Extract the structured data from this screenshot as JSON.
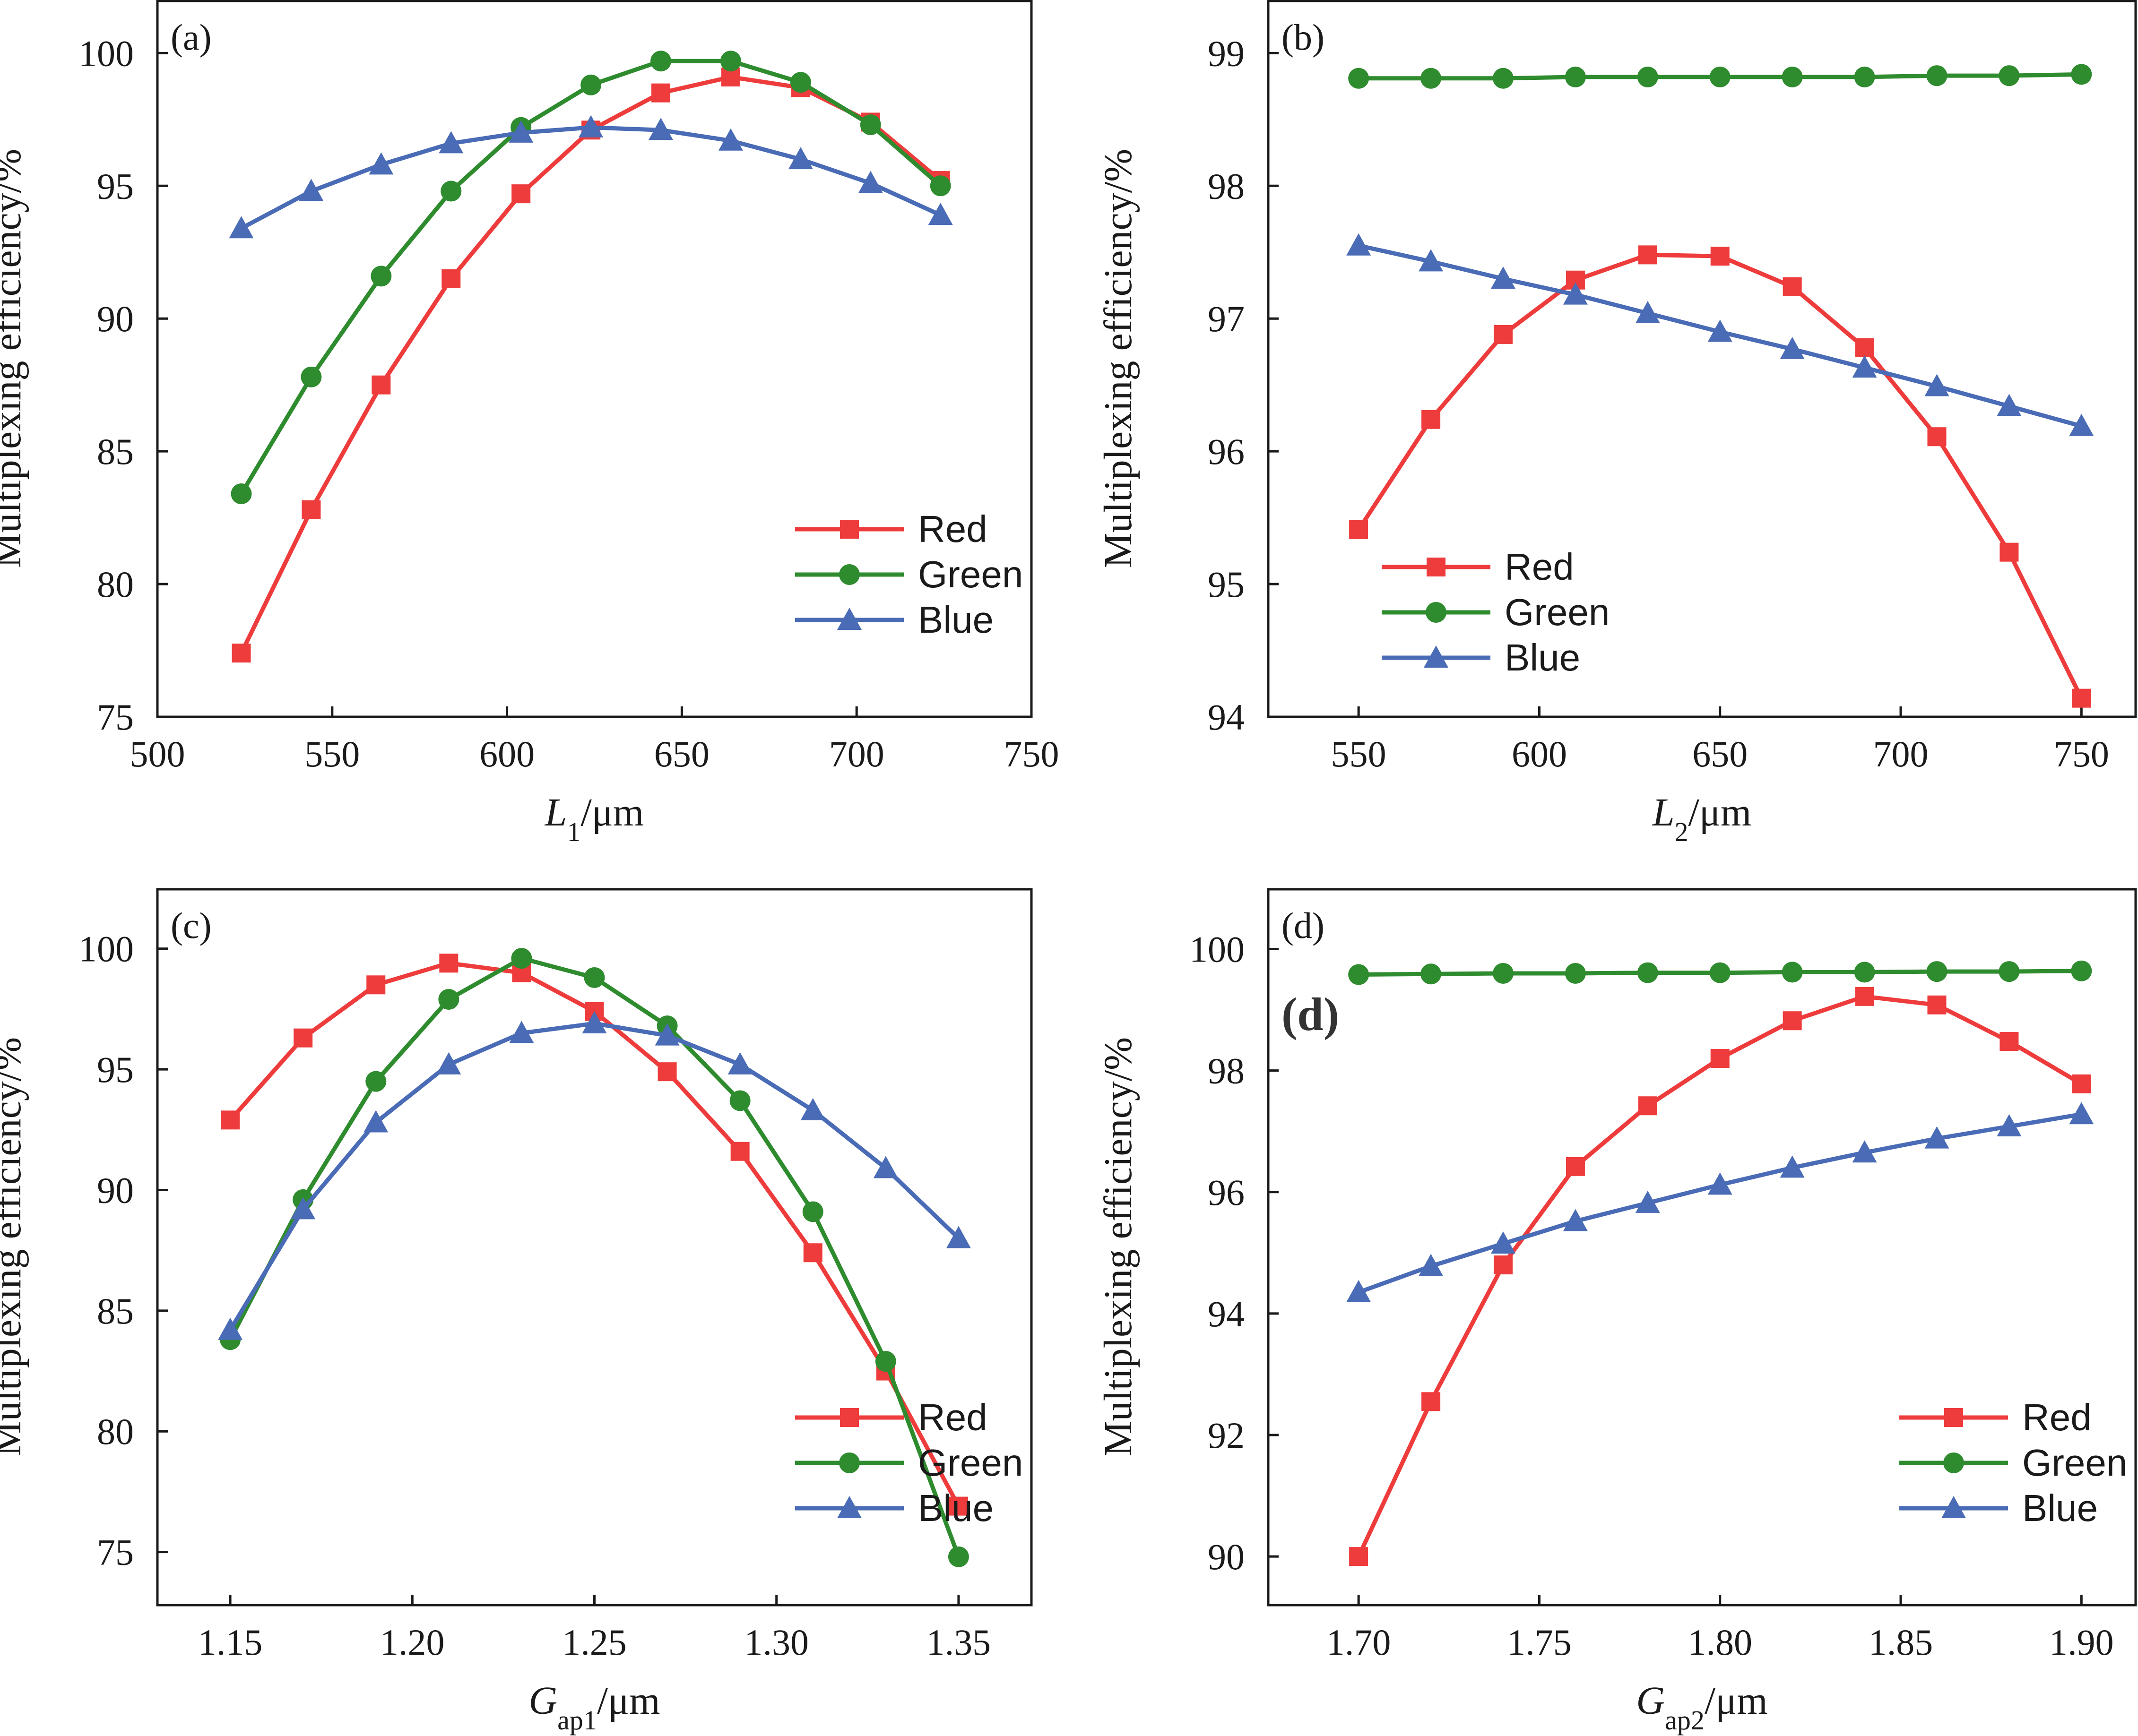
{
  "chart_data": [
    {
      "type": "line",
      "panel_label": "(a)",
      "xlabel": {
        "var": "L",
        "sub": "1",
        "unit": "/μm"
      },
      "ylabel": "Multiplexing efficiency/%",
      "xlim": [
        500,
        750
      ],
      "ylim": [
        75,
        102
      ],
      "xticks": [
        500,
        550,
        600,
        650,
        700,
        750
      ],
      "xtick_labels": [
        "500",
        "550",
        "600",
        "650",
        "700",
        "750"
      ],
      "yticks": [
        75,
        80,
        85,
        90,
        95,
        100
      ],
      "ytick_labels": [
        "75",
        "80",
        "85",
        "90",
        "95",
        "100"
      ],
      "legend_position": "bottom-right",
      "series": [
        {
          "name": "Red",
          "color": "#ee3b3b",
          "marker": "square",
          "x": [
            524,
            544,
            564,
            584,
            604,
            624,
            644,
            664,
            684,
            704,
            724
          ],
          "y": [
            77.4,
            82.8,
            87.5,
            91.5,
            94.7,
            97.1,
            98.5,
            99.1,
            98.7,
            97.4,
            95.2
          ]
        },
        {
          "name": "Green",
          "color": "#2e8b2e",
          "marker": "circle",
          "x": [
            524,
            544,
            564,
            584,
            604,
            624,
            644,
            664,
            684,
            704,
            724
          ],
          "y": [
            83.4,
            87.8,
            91.6,
            94.8,
            97.2,
            98.8,
            99.7,
            99.7,
            98.9,
            97.3,
            95.0
          ]
        },
        {
          "name": "Blue",
          "color": "#4a6bb5",
          "marker": "triangle",
          "x": [
            524,
            544,
            564,
            584,
            604,
            624,
            644,
            664,
            684,
            704,
            724
          ],
          "y": [
            93.4,
            94.8,
            95.8,
            96.6,
            97.0,
            97.2,
            97.1,
            96.7,
            96.0,
            95.1,
            93.9
          ]
        }
      ]
    },
    {
      "type": "line",
      "panel_label": "(b)",
      "xlabel": {
        "var": "L",
        "sub": "2",
        "unit": "/μm"
      },
      "ylabel": "Multiplexing efficiency/%",
      "xlim": [
        525,
        765
      ],
      "ylim": [
        94,
        99.4
      ],
      "xticks": [
        550,
        600,
        650,
        700,
        750
      ],
      "xtick_labels": [
        "550",
        "600",
        "650",
        "700",
        "750"
      ],
      "yticks": [
        94,
        95,
        96,
        97,
        98,
        99
      ],
      "ytick_labels": [
        "94",
        "95",
        "96",
        "97",
        "98",
        "99"
      ],
      "legend_position": "bottom-left",
      "series": [
        {
          "name": "Red",
          "color": "#ee3b3b",
          "marker": "square",
          "x": [
            550,
            570,
            590,
            610,
            630,
            650,
            670,
            690,
            710,
            730,
            750
          ],
          "y": [
            95.41,
            96.24,
            96.88,
            97.29,
            97.48,
            97.47,
            97.24,
            96.78,
            96.11,
            95.24,
            94.14
          ]
        },
        {
          "name": "Green",
          "color": "#2e8b2e",
          "marker": "circle",
          "x": [
            550,
            570,
            590,
            610,
            630,
            650,
            670,
            690,
            710,
            730,
            750
          ],
          "y": [
            98.81,
            98.81,
            98.81,
            98.82,
            98.82,
            98.82,
            98.82,
            98.82,
            98.83,
            98.83,
            98.84
          ]
        },
        {
          "name": "Blue",
          "color": "#4a6bb5",
          "marker": "triangle",
          "x": [
            550,
            570,
            590,
            610,
            630,
            650,
            670,
            690,
            710,
            730,
            750
          ],
          "y": [
            97.55,
            97.43,
            97.3,
            97.18,
            97.04,
            96.9,
            96.77,
            96.63,
            96.49,
            96.34,
            96.19
          ]
        }
      ]
    },
    {
      "type": "line",
      "panel_label": "(c)",
      "xlabel": {
        "var": "G",
        "sub": "ap1",
        "unit": "/μm"
      },
      "ylabel": "Multiplexing efficiency/%",
      "xlim": [
        1.13,
        1.37
      ],
      "ylim": [
        72.8,
        102.5
      ],
      "xticks": [
        1.15,
        1.2,
        1.25,
        1.3,
        1.35
      ],
      "xtick_labels": [
        "1.15",
        "1.20",
        "1.25",
        "1.30",
        "1.35"
      ],
      "yticks": [
        75,
        80,
        85,
        90,
        95,
        100
      ],
      "ytick_labels": [
        "75",
        "80",
        "85",
        "90",
        "95",
        "100"
      ],
      "legend_position": "bottom-right",
      "series": [
        {
          "name": "Red",
          "color": "#ee3b3b",
          "marker": "square",
          "x": [
            1.15,
            1.17,
            1.19,
            1.21,
            1.23,
            1.25,
            1.27,
            1.29,
            1.31,
            1.33,
            1.35
          ],
          "y": [
            92.9,
            96.3,
            98.5,
            99.4,
            99.0,
            97.4,
            94.9,
            91.6,
            87.4,
            82.5,
            76.9
          ]
        },
        {
          "name": "Green",
          "color": "#2e8b2e",
          "marker": "circle",
          "x": [
            1.15,
            1.17,
            1.19,
            1.21,
            1.23,
            1.25,
            1.27,
            1.29,
            1.31,
            1.33,
            1.35
          ],
          "y": [
            83.8,
            89.6,
            94.5,
            97.9,
            99.6,
            98.8,
            96.8,
            93.7,
            89.1,
            82.9,
            74.8
          ]
        },
        {
          "name": "Blue",
          "color": "#4a6bb5",
          "marker": "triangle",
          "x": [
            1.15,
            1.17,
            1.19,
            1.21,
            1.23,
            1.25,
            1.27,
            1.29,
            1.31,
            1.33,
            1.35
          ],
          "y": [
            84.2,
            89.2,
            92.8,
            95.2,
            96.5,
            96.9,
            96.4,
            95.2,
            93.3,
            90.9,
            88.0
          ]
        }
      ]
    },
    {
      "type": "line",
      "panel_label": "(d)",
      "inner_label": "(d)",
      "xlabel": {
        "var": "G",
        "sub": "ap2",
        "unit": "/μm"
      },
      "ylabel": "Multiplexing efficiency/%",
      "xlim": [
        1.675,
        1.915
      ],
      "ylim": [
        89.2,
        101.0
      ],
      "xticks": [
        1.7,
        1.75,
        1.8,
        1.85,
        1.9
      ],
      "xtick_labels": [
        "1.70",
        "1.75",
        "1.80",
        "1.85",
        "1.90"
      ],
      "yticks": [
        90,
        92,
        94,
        96,
        98,
        100
      ],
      "ytick_labels": [
        "90",
        "92",
        "94",
        "96",
        "98",
        "100"
      ],
      "legend_position": "bottom-right",
      "series": [
        {
          "name": "Red",
          "color": "#ee3b3b",
          "marker": "square",
          "x": [
            1.7,
            1.72,
            1.74,
            1.76,
            1.78,
            1.8,
            1.82,
            1.84,
            1.86,
            1.88,
            1.9
          ],
          "y": [
            90.0,
            92.55,
            94.8,
            96.42,
            97.42,
            98.2,
            98.82,
            99.22,
            99.08,
            98.48,
            97.78
          ]
        },
        {
          "name": "Green",
          "color": "#2e8b2e",
          "marker": "circle",
          "x": [
            1.7,
            1.72,
            1.74,
            1.76,
            1.78,
            1.8,
            1.82,
            1.84,
            1.86,
            1.88,
            1.9
          ],
          "y": [
            99.58,
            99.59,
            99.6,
            99.6,
            99.61,
            99.61,
            99.62,
            99.62,
            99.63,
            99.63,
            99.64
          ]
        },
        {
          "name": "Blue",
          "color": "#4a6bb5",
          "marker": "triangle",
          "x": [
            1.7,
            1.72,
            1.74,
            1.76,
            1.78,
            1.8,
            1.82,
            1.84,
            1.86,
            1.88,
            1.9
          ],
          "y": [
            94.35,
            94.78,
            95.15,
            95.52,
            95.82,
            96.12,
            96.4,
            96.65,
            96.88,
            97.08,
            97.28
          ]
        }
      ]
    }
  ]
}
